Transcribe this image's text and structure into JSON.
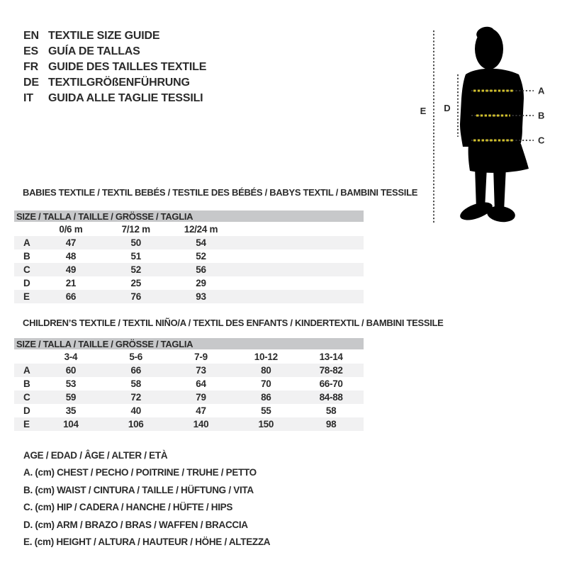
{
  "page": {
    "colors": {
      "text_color": "#2b2b2b",
      "table_header_bg": "#c7c8ca",
      "row_stripe_bg": "#f1f1f2",
      "accent_yellow": "#d2c12d",
      "line_color": "#3a3a3a",
      "silhouette_color": "#000000"
    }
  },
  "languages": {
    "items": [
      {
        "code": "EN",
        "label": "TEXTILE SIZE GUIDE"
      },
      {
        "code": "ES",
        "label": "GUÍA DE TALLAS"
      },
      {
        "code": "FR",
        "label": "GUIDE DES TAILLES TEXTILE"
      },
      {
        "code": "DE",
        "label": "TEXTILGRÖßENFÜHRUNG"
      },
      {
        "code": "IT",
        "label": "GUIDA ALLE TAGLIE TESSILI"
      }
    ]
  },
  "figure": {
    "labels": {
      "a": "A",
      "b": "B",
      "c": "C",
      "d": "D",
      "e": "E"
    }
  },
  "tables": {
    "babies": {
      "title": "BABIES TEXTILE / TEXTIL BEBÉS / TESTILE DES BÉBÉS / BABYS TEXTIL / BAMBINI TESSILE",
      "size_header": "SIZE / TALLA / TAILLE / GRÖSSE / TAGLIA",
      "columns": [
        "0/6 m",
        "7/12 m",
        "12/24 m"
      ],
      "rows": [
        {
          "label": "A",
          "values": [
            "47",
            "50",
            "54"
          ]
        },
        {
          "label": "B",
          "values": [
            "48",
            "51",
            "52"
          ]
        },
        {
          "label": "C",
          "values": [
            "49",
            "52",
            "56"
          ]
        },
        {
          "label": "D",
          "values": [
            "21",
            "25",
            "29"
          ]
        },
        {
          "label": "E",
          "values": [
            "66",
            "76",
            "93"
          ]
        }
      ]
    },
    "children": {
      "title": "CHILDREN’S TEXTILE / TEXTIL NIÑO/A / TEXTIL DES ENFANTS / KINDERTEXTIL / BAMBINI TESSILE",
      "size_header": "SIZE / TALLA / TAILLE / GRÖSSE / TAGLIA",
      "columns": [
        "3-4",
        "5-6",
        "7-9",
        "10-12",
        "13-14"
      ],
      "rows": [
        {
          "label": "A",
          "values": [
            "60",
            "66",
            "73",
            "80",
            "78-82"
          ]
        },
        {
          "label": "B",
          "values": [
            "53",
            "58",
            "64",
            "70",
            "66-70"
          ]
        },
        {
          "label": "C",
          "values": [
            "59",
            "72",
            "79",
            "86",
            "84-88"
          ]
        },
        {
          "label": "D",
          "values": [
            "35",
            "40",
            "47",
            "55",
            "58"
          ]
        },
        {
          "label": "E",
          "values": [
            "104",
            "106",
            "140",
            "150",
            "98"
          ]
        }
      ]
    }
  },
  "legend": {
    "lines": [
      "AGE / EDAD / ÂGE / ALTER / ETÀ",
      "A. (cm) CHEST / PECHO / POITRINE / TRUHE / PETTO",
      "B. (cm) WAIST / CINTURA / TAILLE / HÜFTUNG / VITA",
      "C. (cm) HIP / CADERA / HANCHE / HÜFTE / HIPS",
      "D. (cm) ARM / BRAZO / BRAS / WAFFEN / BRACCIA",
      "E. (cm) HEIGHT / ALTURA / HAUTEUR / HÖHE / ALTEZZA"
    ]
  }
}
